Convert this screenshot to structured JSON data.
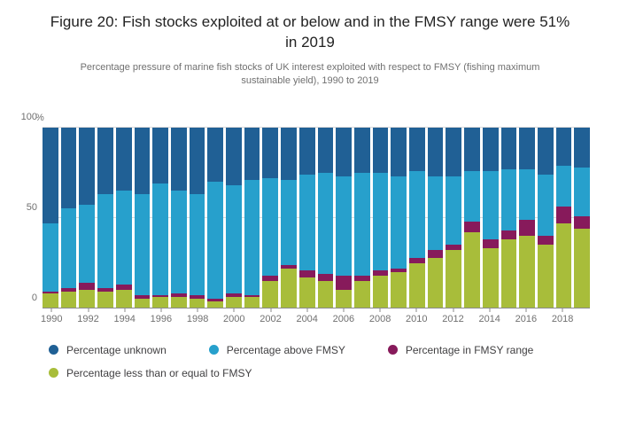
{
  "title": "Figure 20: Fish stocks exploited at or below and in the FMSY range were 51% in 2019",
  "subtitle": "Percentage pressure of marine fish stocks of UK interest exploited with respect to FMSY (fishing maximum sustainable yield), 1990 to 2019",
  "chart_data": {
    "type": "bar",
    "stacked": true,
    "title": "Figure 20: Fish stocks exploited at or below and in the FMSY range were 51% in 2019",
    "subtitle": "Percentage pressure of marine fish stocks of UK interest exploited with respect to FMSY (fishing maximum sustainable yield), 1990 to 2019",
    "xlabel": "",
    "ylabel": "%",
    "ylim": [
      0,
      100
    ],
    "yticks": [
      0,
      50,
      100
    ],
    "grid": "horizontal",
    "legend_position": "bottom",
    "categories": [
      1990,
      1991,
      1992,
      1993,
      1994,
      1995,
      1996,
      1997,
      1998,
      1999,
      2000,
      2001,
      2002,
      2003,
      2004,
      2005,
      2006,
      2007,
      2008,
      2009,
      2010,
      2011,
      2012,
      2013,
      2014,
      2015,
      2016,
      2017,
      2018,
      2019
    ],
    "x_tick_labels": [
      "1990",
      "1992",
      "1994",
      "1996",
      "1998",
      "2000",
      "2002",
      "2004",
      "2006",
      "2008",
      "2010",
      "2012",
      "2014",
      "2016",
      "2018"
    ],
    "series": [
      {
        "name": "Percentage less than or equal to FMSY",
        "color": "#A8BD3A",
        "values": [
          8,
          9,
          10,
          9,
          10,
          5,
          6,
          6,
          5,
          4,
          6,
          6,
          15,
          22,
          17,
          15,
          10,
          15,
          18,
          20,
          25,
          28,
          32,
          42,
          33,
          38,
          40,
          35,
          47,
          44
        ]
      },
      {
        "name": "Percentage in FMSY range",
        "color": "#871A5B",
        "values": [
          1,
          2,
          4,
          2,
          3,
          2,
          1,
          2,
          2,
          1,
          2,
          1,
          3,
          2,
          4,
          4,
          8,
          3,
          3,
          2,
          3,
          4,
          3,
          6,
          5,
          5,
          9,
          5,
          9,
          7
        ]
      },
      {
        "name": "Percentage above FMSY",
        "color": "#27A0CC",
        "values": [
          38,
          44,
          43,
          52,
          52,
          56,
          62,
          57,
          56,
          65,
          60,
          64,
          54,
          47,
          53,
          56,
          55,
          57,
          54,
          51,
          48,
          41,
          38,
          28,
          38,
          34,
          28,
          34,
          23,
          27
        ]
      },
      {
        "name": "Percentage unknown",
        "color": "#206095",
        "values": [
          53,
          45,
          43,
          37,
          35,
          37,
          31,
          35,
          37,
          30,
          32,
          29,
          28,
          29,
          26,
          25,
          27,
          25,
          25,
          27,
          24,
          27,
          27,
          24,
          24,
          23,
          23,
          26,
          21,
          22
        ]
      }
    ],
    "legend_rows": [
      [
        "Percentage unknown",
        "Percentage above FMSY",
        "Percentage in FMSY range"
      ],
      [
        "Percentage less than or equal to FMSY"
      ]
    ]
  }
}
